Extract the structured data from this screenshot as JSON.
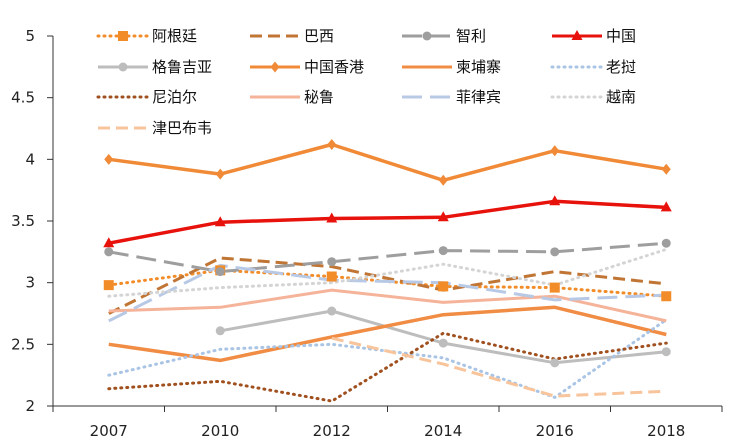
{
  "chart_data": {
    "type": "line",
    "title": "",
    "xlabel": "",
    "ylabel": "",
    "x": [
      "2007",
      "2010",
      "2012",
      "2014",
      "2016",
      "2018"
    ],
    "ylim": [
      2,
      5
    ],
    "yticks": [
      "2",
      "2.5",
      "3",
      "3.5",
      "4",
      "4.5",
      "5"
    ],
    "grid": false,
    "legend_position": "top",
    "series": [
      {
        "name": "阿根廷",
        "color": "#F28C28",
        "dash": "dot",
        "marker": "square",
        "values": [
          2.98,
          3.1,
          3.05,
          2.97,
          2.96,
          2.89
        ]
      },
      {
        "name": "巴西",
        "color": "#C07534",
        "dash": "dash",
        "marker": "none",
        "values": [
          2.75,
          3.2,
          3.13,
          2.94,
          3.09,
          2.99
        ]
      },
      {
        "name": "智利",
        "color": "#9E9E9E",
        "dash": "longdash",
        "marker": "circle",
        "values": [
          3.25,
          3.09,
          3.17,
          3.26,
          3.25,
          3.32
        ]
      },
      {
        "name": "中国",
        "color": "#E8120C",
        "dash": "solid",
        "marker": "triangle",
        "values": [
          3.32,
          3.49,
          3.52,
          3.53,
          3.66,
          3.61
        ]
      },
      {
        "name": "格鲁吉亚",
        "color": "#BDBDBD",
        "dash": "solid",
        "marker": "circle",
        "values": [
          null,
          2.61,
          2.77,
          2.51,
          2.35,
          2.44
        ]
      },
      {
        "name": "中国香港",
        "color": "#F08A37",
        "dash": "solid",
        "marker": "diamond",
        "values": [
          4.0,
          3.88,
          4.12,
          3.83,
          4.07,
          3.92
        ]
      },
      {
        "name": "柬埔寨",
        "color": "#F08C43",
        "dash": "solid",
        "marker": "none",
        "values": [
          2.5,
          2.37,
          2.56,
          2.74,
          2.8,
          2.58
        ]
      },
      {
        "name": "老挝",
        "color": "#A9C4E4",
        "dash": "dot",
        "marker": "none",
        "values": [
          2.25,
          2.46,
          2.5,
          2.39,
          2.07,
          2.7
        ]
      },
      {
        "name": "尼泊尔",
        "color": "#A0501E",
        "dash": "dot",
        "marker": "none",
        "values": [
          2.14,
          2.2,
          2.04,
          2.59,
          2.38,
          2.51
        ]
      },
      {
        "name": "秘鲁",
        "color": "#F5B39A",
        "dash": "solid",
        "marker": "none",
        "values": [
          2.77,
          2.8,
          2.94,
          2.84,
          2.89,
          2.69
        ]
      },
      {
        "name": "菲律宾",
        "color": "#B8C9E6",
        "dash": "longdash",
        "marker": "none",
        "values": [
          2.69,
          3.14,
          3.02,
          3.0,
          2.86,
          2.9
        ]
      },
      {
        "name": "越南",
        "color": "#D4D4D4",
        "dash": "dot",
        "marker": "none",
        "values": [
          2.89,
          2.96,
          3.0,
          3.15,
          2.98,
          3.27
        ]
      },
      {
        "name": "津巴布韦",
        "color": "#F8C49C",
        "dash": "dash",
        "marker": "none",
        "values": [
          null,
          null,
          2.55,
          2.34,
          2.08,
          2.12
        ]
      }
    ]
  }
}
